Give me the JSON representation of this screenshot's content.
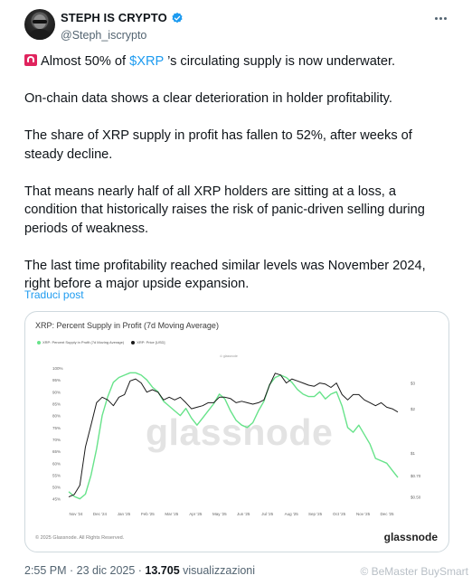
{
  "author": {
    "display_name": "STEPH IS CRYPTO",
    "handle": "@Steph_iscrypto"
  },
  "tweet": {
    "p1_before": "Almost 50% of ",
    "p1_cashtag": "$XRP",
    "p1_after": " ’s circulating supply is now underwater.",
    "p2": "On-chain data shows a clear deterioration in holder profitability.",
    "p3": "The share of XRP supply in profit has fallen to 52%, after weeks of steady decline.",
    "p4": "That means nearly half of all XRP holders are sitting at a loss, a condition that historically raises the risk of panic-driven selling during periods of weakness.",
    "p5": "The last time profitability reached similar levels was November 2024, right before a major upside expansion.",
    "translate_label": "Traduci post"
  },
  "media": {
    "watermark": "glassnode",
    "copyright": "© 2025 Glassnode. All Rights Reserved.",
    "brand": "glassnode"
  },
  "meta": {
    "time": "2:55 PM",
    "separator": " · ",
    "date": "23 dic 2025",
    "views": "13.705",
    "views_label": " visualizzazioni"
  },
  "overlay": {
    "corner_watermark": "© BeMaster BuySmart"
  },
  "colors": {
    "accent": "#1d9bf0",
    "supply_line": "#67e38a",
    "price_line": "#1a1a1a"
  },
  "chart_data": {
    "type": "line",
    "title": "XRP: Percent Supply in Profit (7d Moving Average)",
    "legend": [
      "XRP: Percent Supply in Profit (7d Moving Average)",
      "XRP: Price [USD]"
    ],
    "x_ticks": [
      "Nov '24",
      "Dec '24",
      "Jan '25",
      "Feb '25",
      "Mar '25",
      "Apr '25",
      "May '25",
      "Jun '25",
      "Jul '25",
      "Aug '25",
      "Sep '25",
      "Oct '25",
      "Nov '25",
      "Dec '25"
    ],
    "y_left_ticks": [
      "100%",
      "95%",
      "90%",
      "85%",
      "80%",
      "75%",
      "70%",
      "65%",
      "60%",
      "55%",
      "50%",
      "45%"
    ],
    "y_left_range": [
      43,
      100
    ],
    "y_right_ticks": [
      "$3",
      "$2",
      "$1",
      "$0.70",
      "$0.50"
    ],
    "y_right_scale": "log",
    "grid": false,
    "legend_position": "top-left",
    "series": [
      {
        "name": "XRP: Percent Supply in Profit (7d Moving Average)",
        "color": "#67e38a",
        "x": [
          "2024-11-01",
          "2024-11-08",
          "2024-11-15",
          "2024-11-22",
          "2024-11-29",
          "2024-12-06",
          "2024-12-13",
          "2024-12-20",
          "2024-12-27",
          "2025-01-03",
          "2025-01-10",
          "2025-01-17",
          "2025-01-24",
          "2025-01-31",
          "2025-02-07",
          "2025-02-14",
          "2025-02-21",
          "2025-02-28",
          "2025-03-07",
          "2025-03-14",
          "2025-03-21",
          "2025-03-28",
          "2025-04-04",
          "2025-04-11",
          "2025-04-18",
          "2025-04-25",
          "2025-05-02",
          "2025-05-09",
          "2025-05-16",
          "2025-05-23",
          "2025-05-30",
          "2025-06-06",
          "2025-06-13",
          "2025-06-20",
          "2025-06-27",
          "2025-07-04",
          "2025-07-11",
          "2025-07-18",
          "2025-07-25",
          "2025-08-01",
          "2025-08-08",
          "2025-08-15",
          "2025-08-22",
          "2025-08-29",
          "2025-09-05",
          "2025-09-12",
          "2025-09-19",
          "2025-09-26",
          "2025-10-03",
          "2025-10-10",
          "2025-10-17",
          "2025-10-24",
          "2025-10-31",
          "2025-11-07",
          "2025-11-14",
          "2025-11-21",
          "2025-11-28",
          "2025-12-05",
          "2025-12-12",
          "2025-12-19"
        ],
        "y": [
          48,
          46,
          45,
          47,
          55,
          66,
          80,
          88,
          94,
          96,
          97,
          98,
          98,
          97,
          95,
          92,
          90,
          86,
          84,
          82,
          80,
          83,
          79,
          76,
          79,
          82,
          85,
          89,
          87,
          82,
          78,
          76,
          75,
          77,
          82,
          86,
          93,
          96,
          97,
          96,
          94,
          91,
          89,
          88,
          88,
          90,
          87,
          89,
          90,
          84,
          75,
          73,
          76,
          72,
          68,
          62,
          61,
          60,
          57,
          54
        ]
      },
      {
        "name": "XRP: Price [USD]",
        "color": "#1a1a1a",
        "x": [
          "2024-11-01",
          "2024-11-08",
          "2024-11-15",
          "2024-11-22",
          "2024-11-29",
          "2024-12-06",
          "2024-12-13",
          "2024-12-20",
          "2024-12-27",
          "2025-01-03",
          "2025-01-10",
          "2025-01-17",
          "2025-01-24",
          "2025-01-31",
          "2025-02-07",
          "2025-02-14",
          "2025-02-21",
          "2025-02-28",
          "2025-03-07",
          "2025-03-14",
          "2025-03-21",
          "2025-03-28",
          "2025-04-04",
          "2025-04-11",
          "2025-04-18",
          "2025-04-25",
          "2025-05-02",
          "2025-05-09",
          "2025-05-16",
          "2025-05-23",
          "2025-05-30",
          "2025-06-06",
          "2025-06-13",
          "2025-06-20",
          "2025-06-27",
          "2025-07-04",
          "2025-07-11",
          "2025-07-18",
          "2025-07-25",
          "2025-08-01",
          "2025-08-08",
          "2025-08-15",
          "2025-08-22",
          "2025-08-29",
          "2025-09-05",
          "2025-09-12",
          "2025-09-19",
          "2025-09-26",
          "2025-10-03",
          "2025-10-10",
          "2025-10-17",
          "2025-10-24",
          "2025-10-31",
          "2025-11-07",
          "2025-11-14",
          "2025-11-21",
          "2025-11-28",
          "2025-12-05",
          "2025-12-12",
          "2025-12-19"
        ],
        "y": [
          0.5,
          0.52,
          0.6,
          1.1,
          1.55,
          2.2,
          2.4,
          2.3,
          2.1,
          2.4,
          2.5,
          3.1,
          3.2,
          3.0,
          2.6,
          2.7,
          2.6,
          2.3,
          2.4,
          2.3,
          2.4,
          2.2,
          2.0,
          2.05,
          2.1,
          2.2,
          2.2,
          2.4,
          2.4,
          2.35,
          2.2,
          2.25,
          2.2,
          2.15,
          2.2,
          2.3,
          2.9,
          3.5,
          3.4,
          3.0,
          3.2,
          3.1,
          3.0,
          2.9,
          2.85,
          3.0,
          2.95,
          2.8,
          3.0,
          2.5,
          2.3,
          2.5,
          2.5,
          2.3,
          2.2,
          2.1,
          2.2,
          2.05,
          2.0,
          1.9
        ]
      }
    ]
  }
}
